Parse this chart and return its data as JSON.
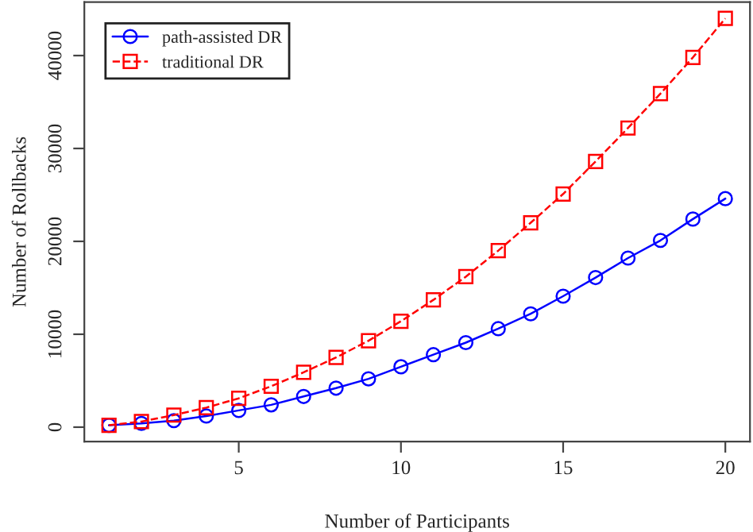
{
  "chart_data": {
    "type": "line",
    "xlabel": "Number of Participants",
    "ylabel": "Number of Rollbacks",
    "x": [
      1,
      2,
      3,
      4,
      5,
      6,
      7,
      8,
      9,
      10,
      11,
      12,
      13,
      14,
      15,
      16,
      17,
      18,
      19,
      20
    ],
    "series": [
      {
        "name": "path-assisted DR",
        "color": "#0000ff",
        "marker": "circle",
        "line_style": "solid",
        "values": [
          200,
          400,
          700,
          1200,
          1800,
          2400,
          3300,
          4200,
          5200,
          6500,
          7800,
          9100,
          10600,
          12200,
          14100,
          16100,
          18200,
          20100,
          22400,
          24600
        ]
      },
      {
        "name": "traditional DR",
        "color": "#ff0000",
        "marker": "square",
        "line_style": "dashed",
        "values": [
          200,
          600,
          1300,
          2100,
          3100,
          4400,
          5900,
          7500,
          9300,
          11400,
          13700,
          16200,
          19000,
          22000,
          25100,
          28600,
          32200,
          35900,
          39800,
          44000
        ]
      }
    ],
    "xlim": [
      0.24,
      20.76
    ],
    "ylim": [
      -1552,
      45752
    ],
    "xticks": [
      5,
      10,
      15,
      20
    ],
    "yticks": [
      0,
      10000,
      20000,
      30000,
      40000
    ],
    "grid": false,
    "legend": "top left"
  }
}
